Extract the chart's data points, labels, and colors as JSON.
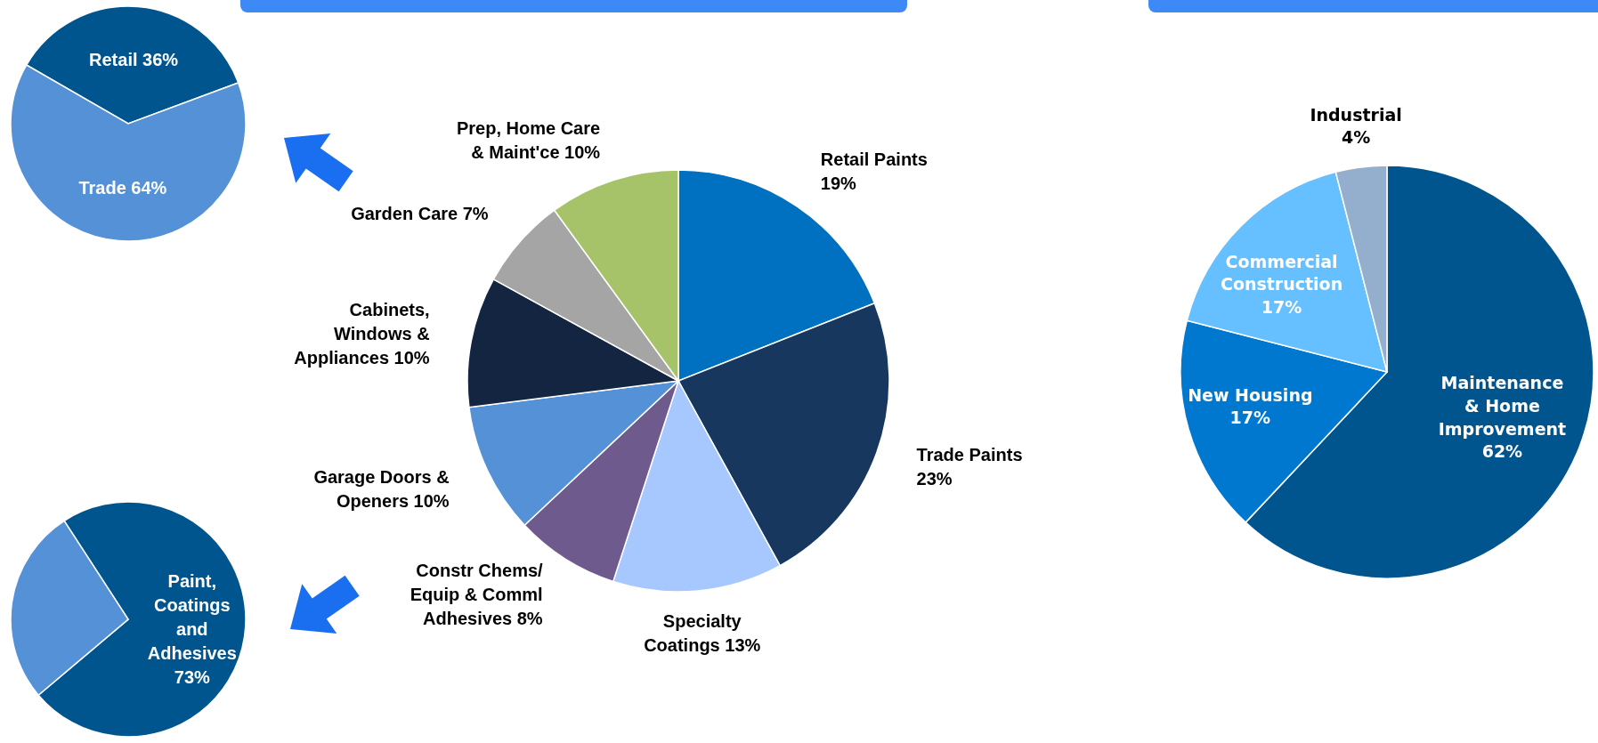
{
  "chart_data": [
    {
      "type": "pie",
      "categories": [
        "Retail",
        "Trade"
      ],
      "values": [
        36,
        64
      ],
      "value_labels": [
        "36%",
        "64%"
      ],
      "colors": [
        "#00558f",
        "#5591d6"
      ]
    },
    {
      "type": "pie",
      "categories": [
        "Retail Paints",
        "Trade Paints",
        "Specialty Coatings",
        "Constr Chems/ Equip & Comml Adhesives",
        "Garage Doors & Openers",
        "Cabinets, Windows & Appliances",
        "Garden Care",
        "Prep, Home Care & Maint'ce"
      ],
      "values": [
        19,
        23,
        13,
        8,
        10,
        10,
        7,
        10
      ],
      "value_labels": [
        "19%",
        "23%",
        "13%",
        "8%",
        "10%",
        "10%",
        "7%",
        "10%"
      ],
      "colors": [
        "#0070c0",
        "#17375e",
        "#a6c8ff",
        "#6f5a8e",
        "#5591d6",
        "#132540",
        "#a5a5a5",
        "#a6c36a"
      ]
    },
    {
      "type": "pie",
      "categories": [
        "Paint, Coatings and Adhesives",
        null
      ],
      "values": [
        73,
        27
      ],
      "value_labels": [
        "73%",
        null
      ],
      "colors": [
        "#00558f",
        "#5591d6"
      ]
    },
    {
      "type": "pie",
      "categories": [
        "Maintenance & Home Improvement",
        "New Housing",
        "Commercial Construction",
        "Industrial"
      ],
      "values": [
        62,
        17,
        17,
        4
      ],
      "value_labels": [
        "62%",
        "17%",
        "17%",
        "4%"
      ],
      "colors": [
        "#00558f",
        "#0078d0",
        "#66bfff",
        "#94aece"
      ]
    }
  ]
}
